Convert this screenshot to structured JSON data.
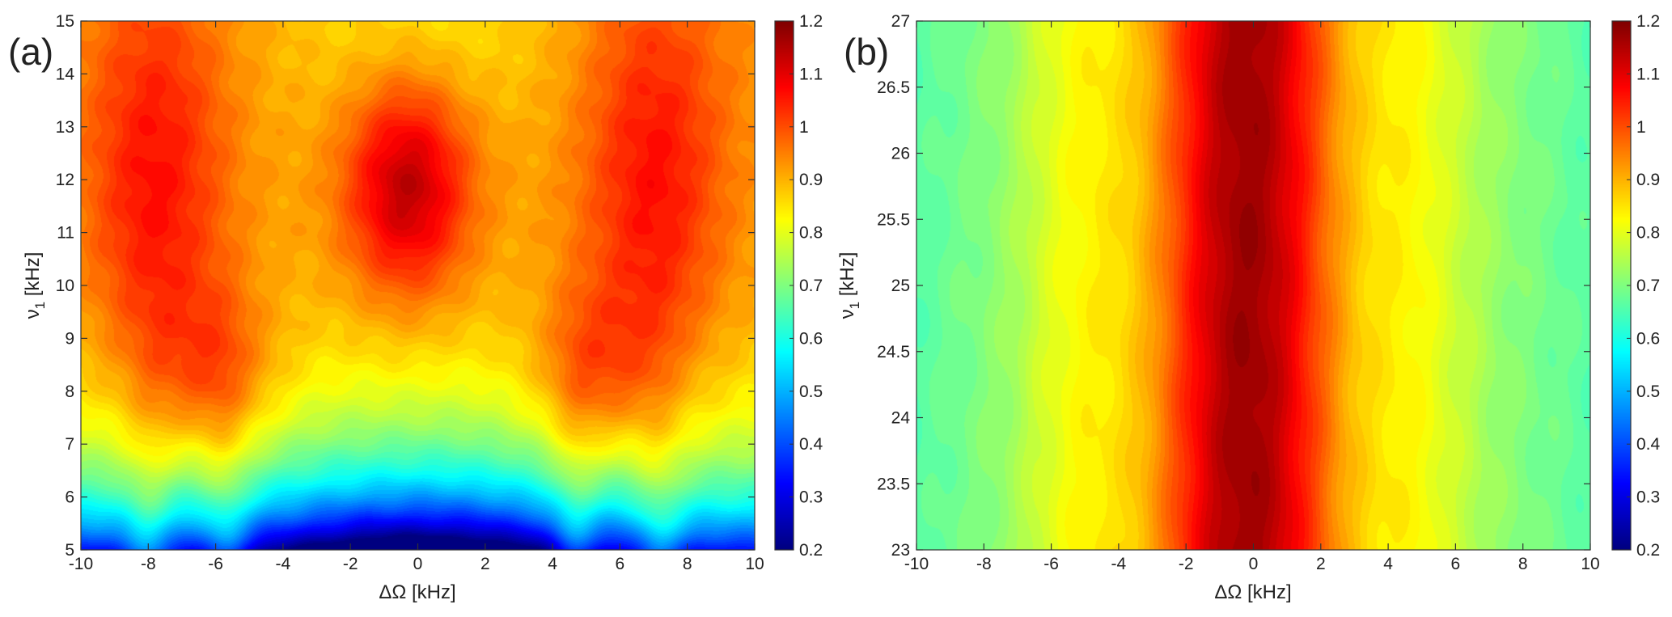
{
  "figure_caption": "",
  "chart_data": [
    {
      "type": "heatmap",
      "panel_label": "(a)",
      "xlabel": "ΔΩ [kHz]",
      "ylabel_main": "ν",
      "ylabel_sub": "1",
      "ylabel_unit": " [kHz]",
      "xlim": [
        -10,
        10
      ],
      "ylim": [
        5,
        15
      ],
      "x_ticks": [
        -10,
        -8,
        -6,
        -4,
        -2,
        0,
        2,
        4,
        6,
        8,
        10
      ],
      "y_ticks": [
        5,
        6,
        7,
        8,
        9,
        10,
        11,
        12,
        13,
        14,
        15
      ],
      "x_tick_labels": [
        "-10",
        "-8",
        "-6",
        "-4",
        "-2",
        "0",
        "2",
        "4",
        "6",
        "8",
        "10"
      ],
      "y_tick_labels": [
        "5",
        "6",
        "7",
        "8",
        "9",
        "10",
        "11",
        "12",
        "13",
        "14",
        "15"
      ],
      "colorbar": {
        "range": [
          0.2,
          1.2
        ],
        "ticks": [
          0.2,
          0.3,
          0.4,
          0.5,
          0.6,
          0.7,
          0.8,
          0.9,
          1.0,
          1.1,
          1.2
        ],
        "tick_labels": [
          "0.2",
          "0.3",
          "0.4",
          "0.5",
          "0.6",
          "0.7",
          "0.8",
          "0.9",
          "1",
          "1.1",
          "1.2"
        ],
        "colormap": "jet"
      },
      "field": {
        "background": 0.93,
        "features": [
          {
            "x": -7.8,
            "y": 11.8,
            "sx": 1.5,
            "sy": 3.0,
            "amp": 0.15
          },
          {
            "x": 7.0,
            "y": 11.8,
            "sx": 1.5,
            "sy": 3.0,
            "amp": 0.15
          },
          {
            "x": -0.3,
            "y": 11.9,
            "sx": 1.3,
            "sy": 1.5,
            "amp": 0.24
          },
          {
            "x": -6.0,
            "y": 8.2,
            "sx": 1.3,
            "sy": 1.2,
            "amp": 0.12
          },
          {
            "x": 5.2,
            "y": 8.2,
            "sx": 1.3,
            "sy": 1.2,
            "amp": 0.12
          },
          {
            "x": 0.0,
            "y": 15.0,
            "sx": 2.8,
            "sy": 1.6,
            "amp": -0.08
          }
        ],
        "low_region": {
          "y_edge": 5.0,
          "depth": 0.58,
          "decay": 1.6,
          "center_boost": {
            "x": 0.0,
            "sx": 3.6,
            "amp": 0.45
          },
          "fingers": [
            -8.0,
            -5.7,
            4.7,
            7.2
          ],
          "finger_width": 0.5,
          "finger_amp": 0.22
        }
      }
    },
    {
      "type": "heatmap",
      "panel_label": "(b)",
      "xlabel": "ΔΩ [kHz]",
      "ylabel_main": "ν",
      "ylabel_sub": "1",
      "ylabel_unit": " [kHz]",
      "xlim": [
        -10,
        10
      ],
      "ylim": [
        23,
        27
      ],
      "x_ticks": [
        -10,
        -8,
        -6,
        -4,
        -2,
        0,
        2,
        4,
        6,
        8,
        10
      ],
      "y_ticks": [
        23,
        23.5,
        24,
        24.5,
        25,
        25.5,
        26,
        26.5,
        27
      ],
      "x_tick_labels": [
        "-10",
        "-8",
        "-6",
        "-4",
        "-2",
        "0",
        "2",
        "4",
        "6",
        "8",
        "10"
      ],
      "y_tick_labels": [
        "23",
        "23.5",
        "24",
        "24.5",
        "25",
        "25.5",
        "26",
        "26.5",
        "27"
      ],
      "colorbar": {
        "range": [
          0.2,
          1.2
        ],
        "ticks": [
          0.2,
          0.3,
          0.4,
          0.5,
          0.6,
          0.7,
          0.8,
          0.9,
          1.0,
          1.1,
          1.2
        ],
        "tick_labels": [
          "0.2",
          "0.3",
          "0.4",
          "0.5",
          "0.6",
          "0.7",
          "0.8",
          "0.9",
          "1",
          "1.1",
          "1.2"
        ],
        "colormap": "jet"
      },
      "field": {
        "background": 0.74,
        "features": [
          {
            "x": -0.2,
            "y": 25.0,
            "sx": 2.1,
            "sy": 50,
            "amp": 0.44
          },
          {
            "x": -5.2,
            "y": 25.0,
            "sx": 1.1,
            "sy": 50,
            "amp": 0.07
          },
          {
            "x": 4.8,
            "y": 25.0,
            "sx": 1.1,
            "sy": 50,
            "amp": 0.07
          }
        ],
        "edge_falloff": {
          "x_from": 6.5,
          "amp": -0.07
        }
      }
    }
  ]
}
